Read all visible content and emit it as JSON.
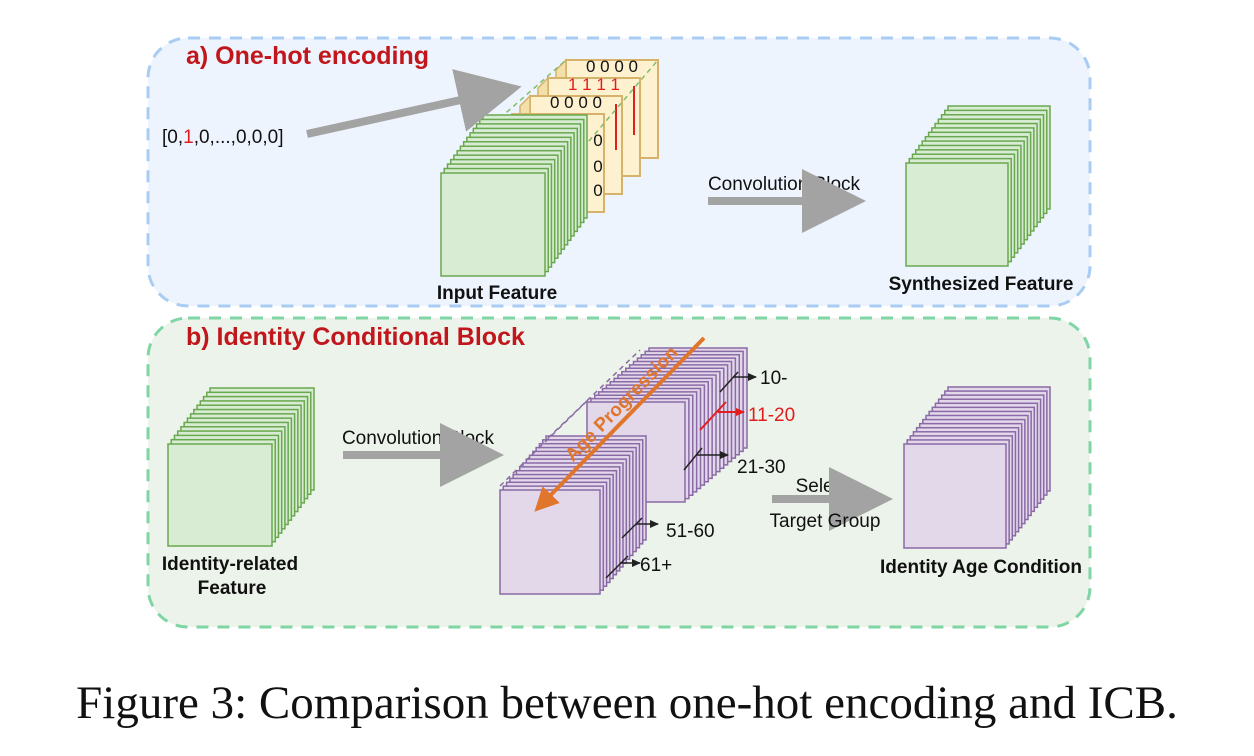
{
  "panel_a": {
    "title": "a) One-hot encoding",
    "vector": {
      "prefix": "[0,",
      "hot": "1",
      "suffix": ",0,...,0,0,0]"
    },
    "input_label": "Input Feature",
    "conv_label": "Convolution Block",
    "output_label": "Synthesized Feature",
    "onehot_grid": [
      [
        "0",
        "0",
        "0",
        "0"
      ],
      [
        "1",
        "1",
        "1",
        "1"
      ],
      [
        "0",
        "0",
        "0",
        "0"
      ],
      [
        "0",
        "0",
        "0",
        "0"
      ]
    ]
  },
  "panel_b": {
    "title": "b) Identity Conditional Block",
    "input_label_line1": "Identity-related",
    "input_label_line2": "Feature",
    "conv_label": "Convolution Block",
    "age_progression": "Age Progression",
    "groups": [
      {
        "label": "10-",
        "selected": false
      },
      {
        "label": "11-20",
        "selected": true
      },
      {
        "label": "21-30",
        "selected": false
      },
      {
        "label": "51-60",
        "selected": false
      },
      {
        "label": "61+",
        "selected": false
      }
    ],
    "select_line1": "Select",
    "select_line2": "Target Group",
    "output_label": "Identity Age Condition"
  },
  "caption": "Figure 3: Comparison between one-hot encoding and ICB.",
  "colors": {
    "title_red": "#c0161c",
    "panel_a_bg": "#eef4fd",
    "panel_a_border": "#a9cdf2",
    "panel_b_bg": "#ecf3ea",
    "panel_b_border": "#7fd6a4",
    "green_face": "#d7ecd3",
    "green_edge": "#6aa84f",
    "purple_face": "#e3d7ea",
    "purple_edge": "#8a6aa6",
    "yellow_face": "#fdf1cf",
    "yellow_edge": "#d7b26b",
    "arrow_gray": "#a3a3a3",
    "orange": "#e0762b",
    "hot_red": "#e11d1d"
  }
}
